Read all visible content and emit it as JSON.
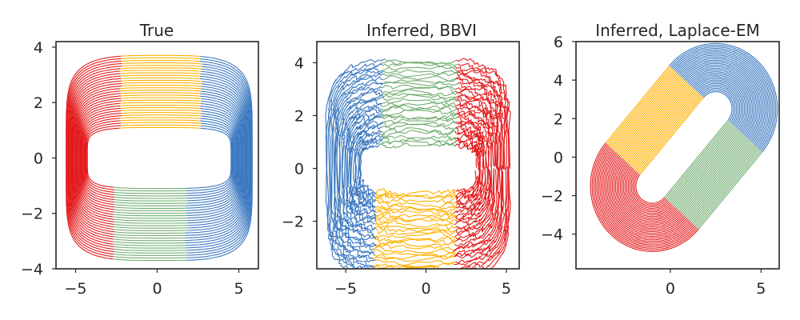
{
  "chart_data": [
    {
      "type": "line",
      "title": "True",
      "xlabel": "",
      "ylabel": "",
      "xlim": [
        -6.2,
        6.2
      ],
      "ylim": [
        -4.0,
        4.2
      ],
      "xticks": [
        -5,
        0,
        5
      ],
      "yticks": [
        -4,
        -2,
        0,
        2,
        4
      ],
      "shape": "rounded-rectangle-loops",
      "loops": {
        "count": 30,
        "x_half_width": [
          4.4,
          5.7
        ],
        "y_half_height": [
          1.1,
          3.7
        ]
      },
      "segments": [
        {
          "state": 1,
          "color": "#e41a1c",
          "region": "left",
          "x_range": [
            -5.7,
            -2.3
          ]
        },
        {
          "state": 2,
          "color": "#ffb000",
          "region": "top",
          "x_range": [
            -2.3,
            2.6
          ]
        },
        {
          "state": 3,
          "color": "#3b78c0",
          "region": "right",
          "x_range": [
            2.6,
            5.7
          ]
        },
        {
          "state": 4,
          "color": "#72ae72",
          "region": "bottom",
          "x_range": [
            -2.6,
            1.9
          ]
        }
      ]
    },
    {
      "type": "line",
      "title": "Inferred, BBVI",
      "xlabel": "",
      "ylabel": "",
      "xlim": [
        -6.8,
        5.8
      ],
      "ylim": [
        -3.8,
        4.8
      ],
      "xticks": [
        -5,
        0,
        5
      ],
      "yticks": [
        -2,
        0,
        2,
        4
      ],
      "shape": "noisy-rounded-rectangle-loops",
      "loops": {
        "count": 30,
        "x_half_width": [
          3.6,
          5.7
        ],
        "y_half_height": [
          0.9,
          4.1
        ]
      },
      "segments": [
        {
          "state": 1,
          "color": "#3b78c0",
          "region": "left",
          "x_range": [
            -6.3,
            -2.8
          ]
        },
        {
          "state": 2,
          "color": "#72ae72",
          "region": "top",
          "x_range": [
            -2.8,
            1.8
          ]
        },
        {
          "state": 3,
          "color": "#e41a1c",
          "region": "right",
          "x_range": [
            1.8,
            5.0
          ]
        },
        {
          "state": 4,
          "color": "#ffb000",
          "region": "bottom",
          "x_range": [
            -3.1,
            1.9
          ]
        }
      ]
    },
    {
      "type": "line",
      "title": "Inferred, Laplace-EM",
      "xlabel": "",
      "ylabel": "",
      "xlim": [
        -5.2,
        6.0
      ],
      "ylim": [
        -5.8,
        6.0
      ],
      "xticks": [
        0,
        5
      ],
      "yticks": [
        -4,
        -2,
        0,
        2,
        4,
        6
      ],
      "shape": "diagonal-stadium-loops",
      "loops": {
        "count": 30,
        "centers": [
          [
            -1.0,
            -1.5
          ],
          [
            2.5,
            2.5
          ]
        ],
        "radius": [
          0.9,
          3.4
        ]
      },
      "segments": [
        {
          "state": 1,
          "color": "#3b78c0",
          "region": "upper-right-cap"
        },
        {
          "state": 2,
          "color": "#ffb000",
          "region": "upper-left-side"
        },
        {
          "state": 3,
          "color": "#e41a1c",
          "region": "lower-left-cap"
        },
        {
          "state": 4,
          "color": "#72ae72",
          "region": "lower-right-side"
        }
      ]
    }
  ]
}
